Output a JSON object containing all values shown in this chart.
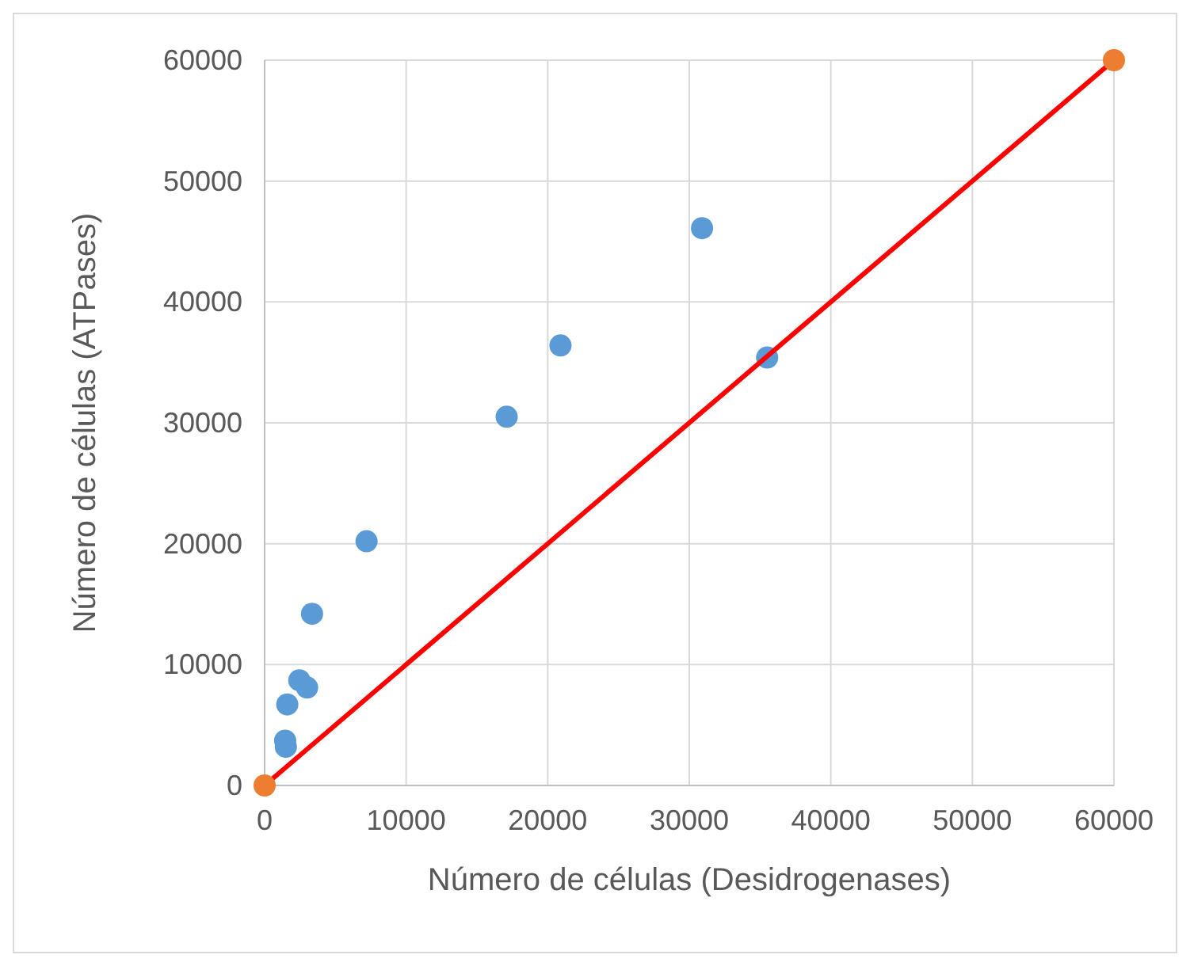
{
  "chart_data": {
    "type": "scatter",
    "xlabel": "Número de células (Desidrogenases)",
    "ylabel": "Número de células (ATPases)",
    "xlim": [
      0,
      60000
    ],
    "ylim": [
      0,
      60000
    ],
    "xticks": [
      0,
      10000,
      20000,
      30000,
      40000,
      50000,
      60000
    ],
    "yticks": [
      0,
      10000,
      20000,
      30000,
      40000,
      50000,
      60000
    ],
    "grid": true,
    "marker": "circle",
    "series": [
      {
        "color": "#5b9bd5",
        "x": [
          1450,
          1500,
          1600,
          2450,
          3000,
          3350,
          7200,
          17100,
          20900,
          30900,
          35500
        ],
        "values": [
          3700,
          3200,
          6700,
          8700,
          8100,
          14200,
          20200,
          30500,
          36400,
          46100,
          35400
        ]
      },
      {
        "type": "line",
        "color": "#ff0000",
        "marker": "none",
        "x": [
          0,
          60000
        ],
        "values": [
          0,
          60000
        ]
      },
      {
        "color": "#ed7d31",
        "x": [
          0,
          60000
        ],
        "values": [
          0,
          60000
        ]
      }
    ]
  }
}
